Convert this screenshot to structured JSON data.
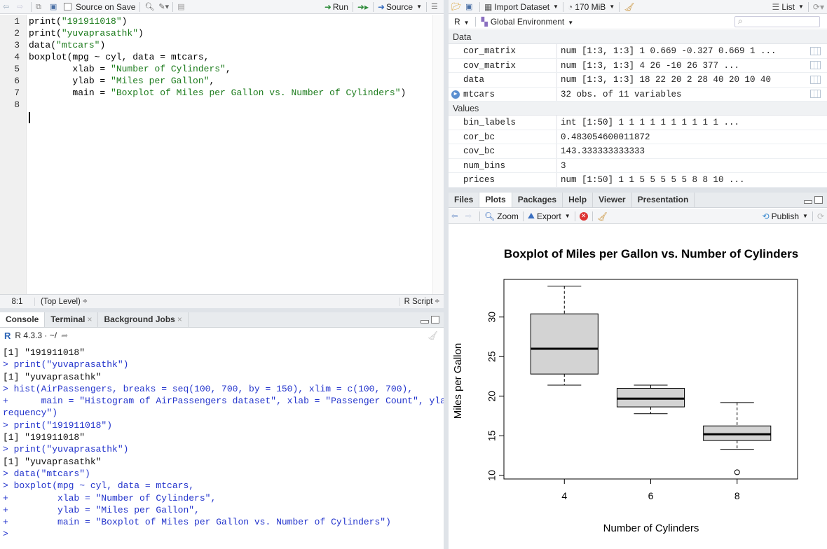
{
  "editor": {
    "toolbar": {
      "source_on_save": "Source on Save",
      "run": "Run",
      "source": "Source"
    },
    "lines": [
      {
        "num": "1",
        "segs": [
          {
            "t": "print(",
            "c": "#000"
          },
          {
            "t": "\"191911018\"",
            "c": "#1a7a1a"
          },
          {
            "t": ")",
            "c": "#000"
          }
        ]
      },
      {
        "num": "2",
        "segs": [
          {
            "t": "print(",
            "c": "#000"
          },
          {
            "t": "\"yuvaprasathk\"",
            "c": "#1a7a1a"
          },
          {
            "t": ")",
            "c": "#000"
          }
        ]
      },
      {
        "num": "3",
        "segs": [
          {
            "t": "data(",
            "c": "#000"
          },
          {
            "t": "\"mtcars\"",
            "c": "#1a7a1a"
          },
          {
            "t": ")",
            "c": "#000"
          }
        ]
      },
      {
        "num": "4",
        "segs": [
          {
            "t": "boxplot(mpg ~ cyl, data = mtcars,",
            "c": "#000"
          }
        ]
      },
      {
        "num": "5",
        "segs": [
          {
            "t": "        xlab = ",
            "c": "#000"
          },
          {
            "t": "\"Number of Cylinders\"",
            "c": "#1a7a1a"
          },
          {
            "t": ",",
            "c": "#000"
          }
        ]
      },
      {
        "num": "6",
        "segs": [
          {
            "t": "        ylab = ",
            "c": "#000"
          },
          {
            "t": "\"Miles per Gallon\"",
            "c": "#1a7a1a"
          },
          {
            "t": ",",
            "c": "#000"
          }
        ]
      },
      {
        "num": "7",
        "segs": [
          {
            "t": "        main = ",
            "c": "#000"
          },
          {
            "t": "\"Boxplot of Miles per Gallon vs. Number of Cylinders\"",
            "c": "#1a7a1a"
          },
          {
            "t": ")",
            "c": "#000"
          }
        ]
      },
      {
        "num": "8",
        "segs": []
      }
    ],
    "status": {
      "position": "8:1",
      "scope": "(Top Level) ÷",
      "filetype": "R Script ÷"
    }
  },
  "console": {
    "tabs": [
      "Console",
      "Terminal",
      "Background Jobs"
    ],
    "version": "R 4.3.3 · ~/",
    "lines": [
      {
        "t": "[1] \"191911018\"",
        "k": "out"
      },
      {
        "t": "> print(\"yuvaprasathk\")",
        "k": "cmd"
      },
      {
        "t": "[1] \"yuvaprasathk\"",
        "k": "out"
      },
      {
        "t": "> hist(AirPassengers, breaks = seq(100, 700, by = 150), xlim = c(100, 700),",
        "k": "cmd"
      },
      {
        "t": "+      main = \"Histogram of AirPassengers dataset\", xlab = \"Passenger Count\", ylab = \"F",
        "k": "cmd"
      },
      {
        "t": "requency\")",
        "k": "cmd"
      },
      {
        "t": "> print(\"191911018\")",
        "k": "cmd"
      },
      {
        "t": "[1] \"191911018\"",
        "k": "out"
      },
      {
        "t": "> print(\"yuvaprasathk\")",
        "k": "cmd"
      },
      {
        "t": "[1] \"yuvaprasathk\"",
        "k": "out"
      },
      {
        "t": "> data(\"mtcars\")",
        "k": "cmd"
      },
      {
        "t": "> boxplot(mpg ~ cyl, data = mtcars,",
        "k": "cmd"
      },
      {
        "t": "+         xlab = \"Number of Cylinders\",",
        "k": "cmd"
      },
      {
        "t": "+         ylab = \"Miles per Gallon\",",
        "k": "cmd"
      },
      {
        "t": "+         main = \"Boxplot of Miles per Gallon vs. Number of Cylinders\")",
        "k": "cmd"
      },
      {
        "t": "> ",
        "k": "cmd"
      }
    ]
  },
  "environment": {
    "toolbar": {
      "import": "Import Dataset",
      "memory": "170 MiB",
      "view": "List"
    },
    "lang": "R",
    "scope": "Global Environment",
    "data_label": "Data",
    "data": [
      {
        "name": "cor_matrix",
        "value": "num [1:3, 1:3] 1 0.669 -0.327 0.669 1 ...",
        "grid": true,
        "expand": false
      },
      {
        "name": "cov_matrix",
        "value": "num [1:3, 1:3] 4 26 -10 26 377 ...",
        "grid": true,
        "expand": false
      },
      {
        "name": "data",
        "value": "num [1:3, 1:3] 18 22 20 2 28 40 20 10 40",
        "grid": true,
        "expand": false
      },
      {
        "name": "mtcars",
        "value": "32 obs. of 11 variables",
        "grid": true,
        "expand": true
      }
    ],
    "values_label": "Values",
    "values": [
      {
        "name": "bin_labels",
        "value": "int [1:50] 1 1 1 1 1 1 1 1 1 1 ..."
      },
      {
        "name": "cor_bc",
        "value": "0.483054600011872"
      },
      {
        "name": "cov_bc",
        "value": "143.333333333333"
      },
      {
        "name": "num_bins",
        "value": "3"
      },
      {
        "name": "prices",
        "value": "num [1:50] 1 1 5 5 5 5 5 8 8 10 ..."
      }
    ]
  },
  "files_pane": {
    "tabs": [
      "Files",
      "Plots",
      "Packages",
      "Help",
      "Viewer",
      "Presentation"
    ],
    "active_tab": 1,
    "toolbar": {
      "zoom": "Zoom",
      "export": "Export",
      "publish": "Publish"
    }
  },
  "chart_data": {
    "type": "boxplot",
    "title": "Boxplot of Miles per Gallon vs. Number of Cylinders",
    "xlabel": "Number of Cylinders",
    "ylabel": "Miles per Gallon",
    "categories": [
      "4",
      "6",
      "8"
    ],
    "boxes": [
      {
        "min": 21.4,
        "q1": 22.8,
        "median": 26.0,
        "q3": 30.4,
        "max": 33.9,
        "outliers": []
      },
      {
        "min": 17.8,
        "q1": 18.65,
        "median": 19.7,
        "q3": 21.0,
        "max": 21.4,
        "outliers": []
      },
      {
        "min": 13.3,
        "q1": 14.4,
        "median": 15.2,
        "q3": 16.25,
        "max": 19.2,
        "outliers": [
          10.4
        ]
      }
    ],
    "yticks": [
      10,
      15,
      20,
      25,
      30
    ],
    "ylim": [
      9.55,
      34.75
    ],
    "box_color": "#d3d3d3"
  }
}
